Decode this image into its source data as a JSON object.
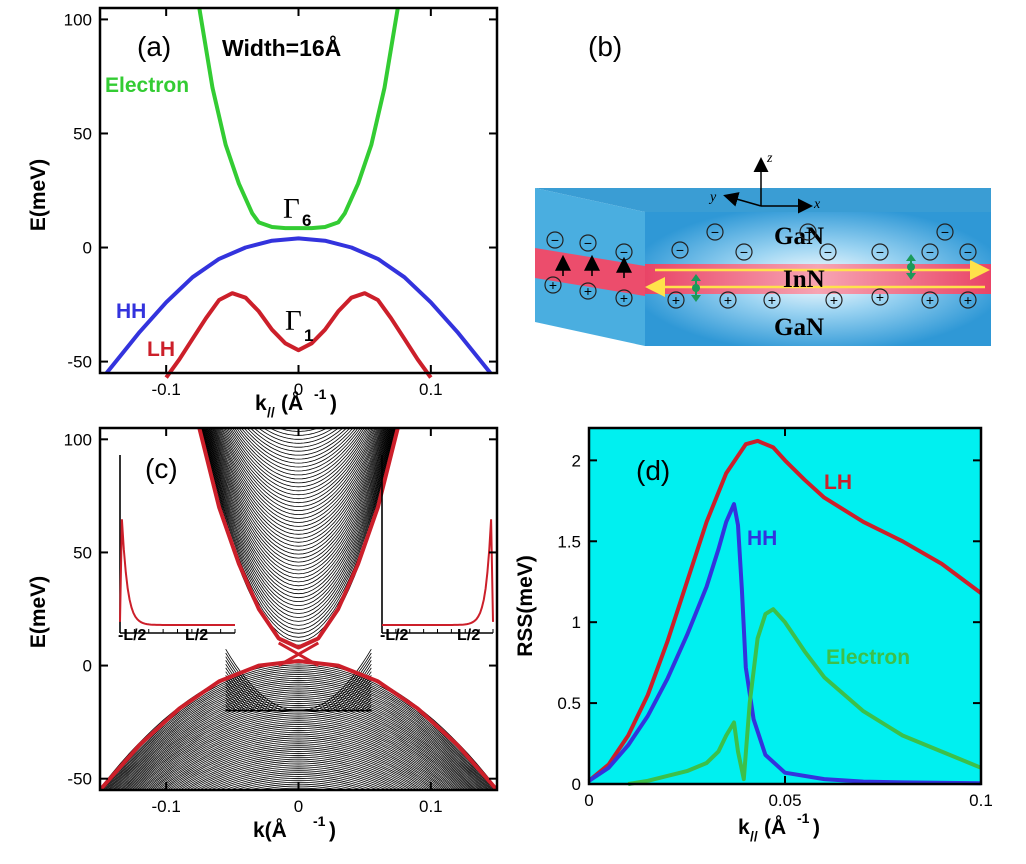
{
  "panels": {
    "a": {
      "label": "(a)",
      "width_text": "Width=16Å",
      "gamma6": "6",
      "gamma1": "1",
      "xticks": [
        "-0.1",
        "0",
        "0.1"
      ],
      "yticks": [
        "100",
        "50",
        "0",
        "-50"
      ],
      "ylabel": "E(meV)",
      "xlabel_main": "k",
      "xlabel_sub": "//",
      "xlabel_unit": "(Å",
      "xlabel_sup": "-1",
      "xlabel_close": ")",
      "series_labels": {
        "electron": "Electron",
        "hh": "HH",
        "lh": "LH"
      }
    },
    "b": {
      "label": "(b)",
      "top_layer": "GaN",
      "mid_layer": "InN",
      "bottom_layer": "GaN",
      "axis_z": "z",
      "axis_y": "y",
      "axis_x": "x",
      "minus": "−",
      "plus": "+"
    },
    "c": {
      "label": "(c)",
      "xticks": [
        "-0.1",
        "0",
        "0.1"
      ],
      "yticks": [
        "100",
        "50",
        "0",
        "-50"
      ],
      "ylabel": "E(meV)",
      "xlabel": "k(Å",
      "xlabel_sup": "-1",
      "xlabel_close": ")",
      "inset_left_ticks": [
        "-L/2",
        "L/2"
      ],
      "inset_right_ticks": [
        "-L/2",
        "L/2"
      ]
    },
    "d": {
      "label": "(d)",
      "xticks": [
        "0",
        "0.05",
        "0.1"
      ],
      "yticks": [
        "2",
        "1.5",
        "1",
        "0.5",
        "0"
      ],
      "ylabel": "RSS(meV)",
      "xlabel_main": "k",
      "xlabel_sub": "//",
      "xlabel_unit": "(Å",
      "xlabel_sup": "-1",
      "xlabel_close": ")",
      "series_labels": {
        "lh": "LH",
        "hh": "HH",
        "electron": "Electron"
      }
    }
  },
  "colors": {
    "electron": "#33cc33",
    "hh": "#3333dd",
    "lh": "#cc1f2a",
    "d_background": "#00f0f0",
    "d_electron": "#3cc04a",
    "inset": "#cc1f2a",
    "bands": "#000000",
    "envelope": "#cc1f2a",
    "gan": "#2f98d6",
    "inn": "#ee4a6a",
    "arrow_yellow": "#ffe24a"
  },
  "chart_data": [
    {
      "panel": "a",
      "type": "line",
      "xlim": [
        -0.15,
        0.15
      ],
      "ylim": [
        -55,
        105
      ],
      "series": [
        {
          "name": "Electron",
          "x": [
            -0.075,
            -0.065,
            -0.055,
            -0.045,
            -0.035,
            -0.03,
            -0.02,
            -0.01,
            0,
            0.01,
            0.02,
            0.03,
            0.035,
            0.045,
            0.055,
            0.065,
            0.075
          ],
          "y": [
            105,
            70,
            45,
            28,
            15,
            11,
            9,
            8.5,
            8.5,
            8.5,
            9,
            11,
            15,
            28,
            45,
            70,
            105
          ]
        },
        {
          "name": "HH",
          "x": [
            -0.145,
            -0.12,
            -0.1,
            -0.08,
            -0.06,
            -0.04,
            -0.02,
            0,
            0.02,
            0.04,
            0.06,
            0.08,
            0.1,
            0.12,
            0.145
          ],
          "y": [
            -55,
            -37,
            -24,
            -13,
            -5,
            0,
            3,
            4,
            3,
            0,
            -5,
            -13,
            -24,
            -37,
            -55
          ]
        },
        {
          "name": "LH",
          "x": [
            -0.1,
            -0.09,
            -0.08,
            -0.07,
            -0.06,
            -0.05,
            -0.04,
            -0.03,
            -0.02,
            -0.01,
            0,
            0.01,
            0.02,
            0.03,
            0.04,
            0.05,
            0.06,
            0.07,
            0.08,
            0.09,
            0.1
          ],
          "y": [
            -57,
            -49,
            -40,
            -31,
            -23,
            -20,
            -22,
            -28,
            -36,
            -42,
            -45,
            -42,
            -36,
            -28,
            -22,
            -20,
            -23,
            -31,
            -40,
            -49,
            -57
          ]
        }
      ]
    },
    {
      "panel": "c",
      "type": "line",
      "xlim": [
        -0.15,
        0.15
      ],
      "ylim": [
        -55,
        105
      ],
      "series": [
        {
          "name": "Conduction envelope",
          "x": [
            -0.075,
            -0.06,
            -0.045,
            -0.03,
            -0.015,
            0,
            0.015,
            0.03,
            0.045,
            0.06,
            0.075
          ],
          "y": [
            105,
            70,
            45,
            25,
            12,
            8,
            12,
            25,
            45,
            70,
            105
          ]
        },
        {
          "name": "Valence envelope",
          "x": [
            -0.15,
            -0.12,
            -0.09,
            -0.06,
            -0.03,
            0,
            0.03,
            0.06,
            0.09,
            0.12,
            0.15
          ],
          "y": [
            -55,
            -35,
            -19,
            -7,
            0,
            2,
            0,
            -7,
            -19,
            -35,
            -55
          ]
        },
        {
          "name": "Edge states",
          "x": [
            -0.015,
            0,
            0.015
          ],
          "y": [
            10,
            5,
            0
          ]
        }
      ]
    },
    {
      "panel": "d",
      "type": "line",
      "xlim": [
        0,
        0.1
      ],
      "ylim": [
        0,
        2.2
      ],
      "series": [
        {
          "name": "LH",
          "x": [
            0,
            0.005,
            0.01,
            0.015,
            0.02,
            0.025,
            0.03,
            0.035,
            0.04,
            0.043,
            0.047,
            0.05,
            0.055,
            0.06,
            0.07,
            0.08,
            0.09,
            0.1
          ],
          "y": [
            0.02,
            0.12,
            0.3,
            0.55,
            0.88,
            1.25,
            1.62,
            1.92,
            2.1,
            2.12,
            2.08,
            2.0,
            1.88,
            1.77,
            1.62,
            1.5,
            1.36,
            1.18
          ]
        },
        {
          "name": "HH",
          "x": [
            0,
            0.005,
            0.01,
            0.015,
            0.02,
            0.025,
            0.03,
            0.033,
            0.035,
            0.037,
            0.038,
            0.039,
            0.04,
            0.042,
            0.045,
            0.05,
            0.06,
            0.07,
            0.08,
            0.1
          ],
          "y": [
            0.02,
            0.1,
            0.24,
            0.42,
            0.65,
            0.92,
            1.22,
            1.45,
            1.62,
            1.73,
            1.6,
            1.2,
            0.72,
            0.4,
            0.18,
            0.07,
            0.03,
            0.015,
            0.01,
            0.005
          ]
        },
        {
          "name": "Electron",
          "x": [
            0.01,
            0.015,
            0.02,
            0.025,
            0.03,
            0.033,
            0.035,
            0.037,
            0.038,
            0.0395,
            0.041,
            0.043,
            0.045,
            0.047,
            0.05,
            0.055,
            0.06,
            0.07,
            0.08,
            0.09,
            0.1
          ],
          "y": [
            0,
            0.02,
            0.05,
            0.08,
            0.13,
            0.2,
            0.3,
            0.38,
            0.2,
            0.03,
            0.5,
            0.9,
            1.05,
            1.08,
            1.0,
            0.82,
            0.66,
            0.45,
            0.3,
            0.2,
            0.1
          ]
        }
      ]
    }
  ]
}
